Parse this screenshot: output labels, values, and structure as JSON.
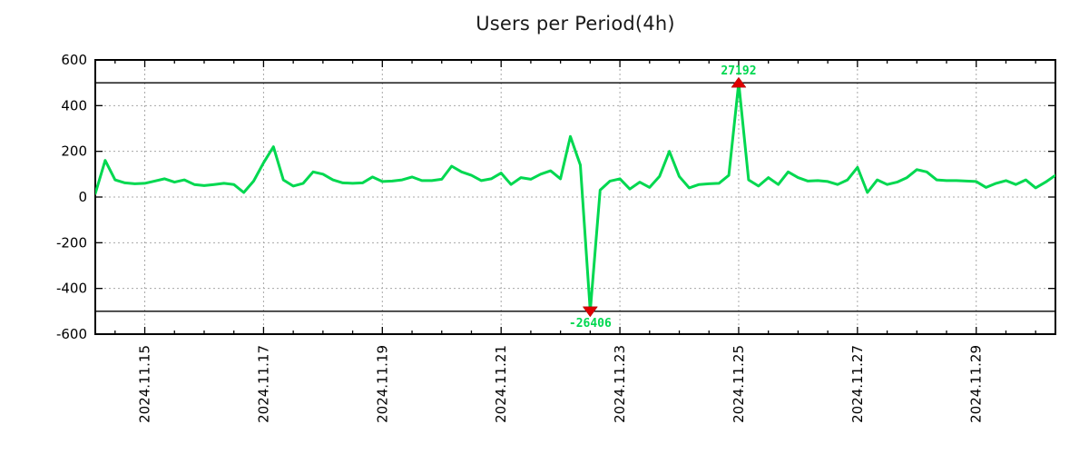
{
  "title": "Users per Period(4h)",
  "chart_data": {
    "type": "line",
    "title": "Users per Period(4h)",
    "series_name": "users",
    "period": "4h",
    "hours_origin": "2024-11-14 00:00",
    "time_start_hours": 4,
    "time_step_hours": 4,
    "values": [
      15,
      160,
      75,
      62,
      58,
      60,
      70,
      80,
      65,
      75,
      55,
      50,
      55,
      60,
      55,
      20,
      70,
      150,
      220,
      75,
      48,
      60,
      110,
      100,
      75,
      62,
      60,
      62,
      88,
      68,
      70,
      75,
      88,
      72,
      72,
      78,
      135,
      110,
      95,
      72,
      80,
      105,
      55,
      85,
      78,
      100,
      115,
      80,
      265,
      140,
      -26406,
      30,
      70,
      80,
      35,
      65,
      42,
      90,
      200,
      90,
      40,
      55,
      58,
      60,
      95,
      27192,
      75,
      48,
      85,
      55,
      110,
      85,
      70,
      72,
      68,
      55,
      75,
      130,
      20,
      75,
      55,
      65,
      85,
      120,
      110,
      75,
      72,
      72,
      70,
      68,
      42,
      60,
      72,
      55,
      75,
      40,
      65,
      95
    ],
    "x_domain_hours": [
      4,
      392
    ],
    "x_ticks": [
      {
        "label": "2024.11.15",
        "hours": 24
      },
      {
        "label": "2024.11.17",
        "hours": 72
      },
      {
        "label": "2024.11.19",
        "hours": 120
      },
      {
        "label": "2024.11.21",
        "hours": 168
      },
      {
        "label": "2024.11.23",
        "hours": 216
      },
      {
        "label": "2024.11.25",
        "hours": 264
      },
      {
        "label": "2024.11.27",
        "hours": 312
      },
      {
        "label": "2024.11.29",
        "hours": 360
      }
    ],
    "x_minor_tick_hours": 12,
    "ylim": [
      -600,
      600
    ],
    "y_ticks": [
      {
        "label": "-600",
        "v": -600
      },
      {
        "label": "-400",
        "v": -400
      },
      {
        "label": "-200",
        "v": -200
      },
      {
        "label": "0",
        "v": 0
      },
      {
        "label": "200",
        "v": 200
      },
      {
        "label": "400",
        "v": 400
      },
      {
        "label": "600",
        "v": 600
      }
    ],
    "y_gridlines": [
      -400,
      -200,
      0,
      200,
      400
    ],
    "threshold_lines": [
      500,
      -500
    ],
    "clip": [
      -500,
      500
    ],
    "grid": true,
    "legend": "none",
    "annotations": [
      {
        "id": "max",
        "label": "27192",
        "hours": 264,
        "value": 27192,
        "marker": "triangle-up",
        "clip_at": 500
      },
      {
        "id": "min",
        "label": "-26406",
        "hours": 204,
        "value": -26406,
        "marker": "triangle-down",
        "clip_at": -500
      }
    ],
    "colors": {
      "line": "#00d850",
      "marker": "#dd0000",
      "annotation_text": "#00d850",
      "grid": "#a8a8a8",
      "axis": "#000000",
      "background": "#ffffff",
      "title_text": "#1a1a1a",
      "tick_text": "#000000"
    }
  }
}
